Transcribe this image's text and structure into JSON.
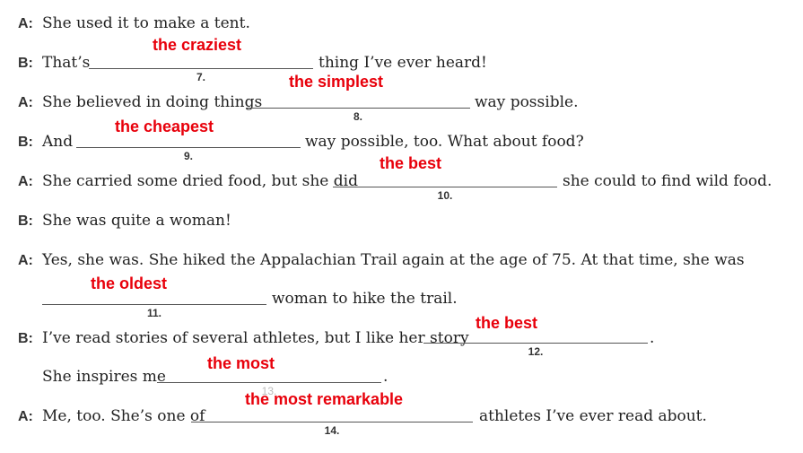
{
  "colors": {
    "answer": "#e8000b",
    "text": "#222222",
    "line": "#555555"
  },
  "lines": [
    {
      "speaker": "A:",
      "before": "She used it to make a tent."
    },
    {
      "speaker": "B:",
      "before": "That’s",
      "after": "thing I’ve ever heard!",
      "blank_number": "7.",
      "answer": "the craziest"
    },
    {
      "speaker": "A:",
      "before": "She believed in doing things",
      "after": "way possible.",
      "blank_number": "8.",
      "answer": "the simplest"
    },
    {
      "speaker": "B:",
      "before": "And",
      "after": "way possible, too. What about food?",
      "blank_number": "9.",
      "answer": "the cheapest"
    },
    {
      "speaker": "A:",
      "before": "She carried some dried food, but she did",
      "after": "she could to find wild food.",
      "blank_number": "10.",
      "answer": "the best"
    },
    {
      "speaker": "B:",
      "before": "She was quite a woman!"
    },
    {
      "speaker": "A:",
      "before": "Yes, she was. She hiked the Appalachian Trail again at the age of 75. At that time, she was"
    },
    {
      "after": "woman to hike the trail.",
      "blank_number": "11.",
      "answer": "the oldest"
    },
    {
      "speaker": "B:",
      "before": "I’ve read stories of several athletes, but I like her story",
      "after": ".",
      "blank_number": "12.",
      "answer": "the best"
    },
    {
      "before": "She inspires me",
      "after": ".",
      "blank_number": "13.",
      "answer": "the most"
    },
    {
      "speaker": "A:",
      "before": "Me, too. She’s one of",
      "after": "athletes I’ve ever read about.",
      "blank_number": "14.",
      "answer": "the most remarkable"
    }
  ]
}
